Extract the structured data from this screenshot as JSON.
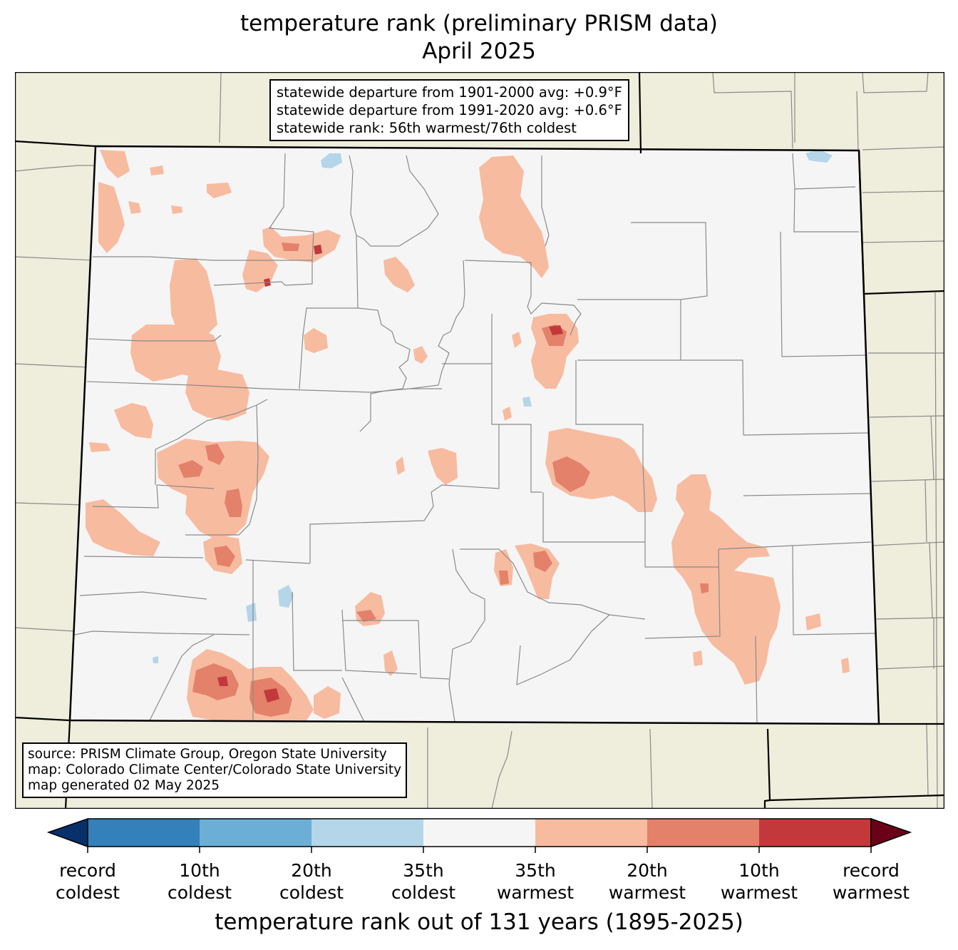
{
  "title": {
    "line1": "temperature rank (preliminary PRISM data)",
    "line2": "April 2025"
  },
  "stats": {
    "line1": "statewide departure from 1901-2000 avg: +0.9°F",
    "line2": "statewide departure from 1991-2020 avg: +0.6°F",
    "line3": "statewide rank: 56th warmest/76th coldest"
  },
  "source": {
    "line1": "source: PRISM Climate Group, Oregon State University",
    "line2": "map: Colorado Climate Center/Colorado State University",
    "line3": "map generated 02 May 2025"
  },
  "colorbar": {
    "title": "temperature rank out of 131 years (1895-2025)",
    "ticks": [
      {
        "l1": "record",
        "l2": "coldest"
      },
      {
        "l1": "10th",
        "l2": "coldest"
      },
      {
        "l1": "20th",
        "l2": "coldest"
      },
      {
        "l1": "35th",
        "l2": "coldest"
      },
      {
        "l1": "35th",
        "l2": "warmest"
      },
      {
        "l1": "20th",
        "l2": "warmest"
      },
      {
        "l1": "10th",
        "l2": "warmest"
      },
      {
        "l1": "record",
        "l2": "warmest"
      }
    ],
    "colors": {
      "below_record_coldest": "#08306b",
      "record_to_10th_coldest": "#3480ba",
      "10th_to_20th_coldest": "#6baed6",
      "20th_to_35th_coldest": "#b4d6e8",
      "near_normal": "#f5f5f5",
      "35th_to_20th_warmest": "#f7bba0",
      "20th_to_10th_warmest": "#e3816a",
      "10th_to_record_warmest": "#c3393b",
      "above_record_warmest": "#6b0019"
    }
  },
  "map_colors": {
    "background": "#efeddc",
    "state_fill": "#f5f5f5",
    "county_lines": "#8a8a8a",
    "state_border": "#000000"
  }
}
